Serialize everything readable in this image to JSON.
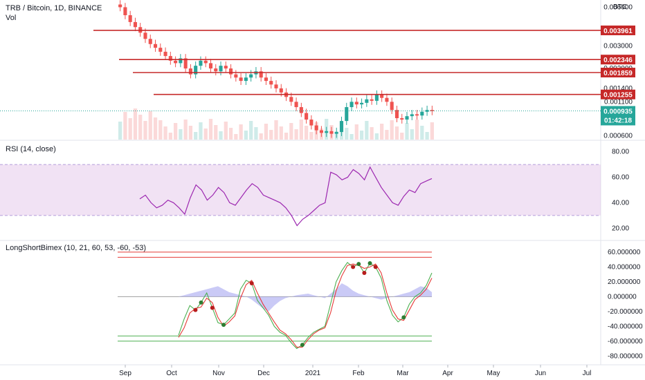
{
  "header": {
    "symbol": "TRB / Bitcoin, 1D, BINANCE",
    "volume_label": "Vol",
    "currency": "BTC"
  },
  "colors": {
    "up": "#26a69a",
    "down": "#ef5350",
    "level_line": "#c62828",
    "rsi_line": "#9c27b0",
    "rsi_band": "#e1bee7",
    "fast_line": "#4caf50",
    "slow_line": "#e53935",
    "histogram": "#b3b3f2",
    "last_price_tag": "#26a69a"
  },
  "chart_data": [
    {
      "type": "candlestick",
      "panel": "price",
      "title": "TRB / Bitcoin, 1D, BINANCE",
      "y_scale": "log",
      "y_ticks": [
        "0.006000",
        "0.003000",
        "0.002000",
        "0.001400",
        "0.001100",
        "0.000600"
      ],
      "horizontal_levels": [
        0.003961,
        0.002346,
        0.001859,
        0.001255
      ],
      "level_tags": [
        "0.003961",
        "0.002346",
        "0.001859",
        "0.001255"
      ],
      "last_price": "0.000935",
      "countdown": "01:42:18",
      "x_ticks": [
        "Sep",
        "Oct",
        "Nov",
        "Dec",
        "2021",
        "Feb",
        "Mar",
        "Apr",
        "May",
        "Jun",
        "Jul"
      ],
      "close_series": [
        0.006,
        0.0052,
        0.0046,
        0.0042,
        0.0038,
        0.0034,
        0.0031,
        0.0029,
        0.0027,
        0.0025,
        0.0023,
        0.0022,
        0.0024,
        0.002,
        0.0018,
        0.0021,
        0.0023,
        0.0022,
        0.002,
        0.0019,
        0.0021,
        0.002,
        0.0018,
        0.0017,
        0.0016,
        0.0017,
        0.0018,
        0.0019,
        0.0017,
        0.0016,
        0.0015,
        0.0014,
        0.0013,
        0.0012,
        0.0011,
        0.001,
        0.0009,
        0.0008,
        0.00072,
        0.00066,
        0.00063,
        0.00065,
        0.00062,
        0.00064,
        0.00078,
        0.001,
        0.0011,
        0.00105,
        0.00108,
        0.00115,
        0.00112,
        0.00125,
        0.00118,
        0.0011,
        0.00095,
        0.00082,
        0.0008,
        0.00085,
        0.00088,
        0.00086,
        0.00092,
        0.00095,
        0.00093
      ]
    },
    {
      "type": "line",
      "panel": "rsi",
      "title": "RSI (14, close)",
      "y_ticks": [
        "80.00",
        "60.00",
        "40.00",
        "20.00"
      ],
      "band": [
        30,
        70
      ],
      "series": [
        {
          "values": [
            43,
            46,
            40,
            36,
            38,
            42,
            40,
            36,
            31,
            44,
            54,
            50,
            42,
            46,
            52,
            48,
            40,
            38,
            44,
            50,
            55,
            52,
            46,
            44,
            42,
            40,
            36,
            30,
            22,
            27,
            30,
            34,
            38,
            40,
            64,
            62,
            58,
            60,
            66,
            63,
            58,
            68,
            60,
            52,
            46,
            40,
            38,
            45,
            50,
            48,
            55,
            57,
            59
          ]
        }
      ]
    },
    {
      "type": "line",
      "panel": "oscillator",
      "title": "LongShortBimex (10, 21, 60, 53, -60, -53)",
      "y_ticks": [
        "60.000000",
        "40.000000",
        "20.000000",
        "0.000000",
        "-20.000000",
        "-40.000000",
        "-60.000000",
        "-80.000000"
      ],
      "levels": [
        60,
        53,
        -53,
        -60
      ],
      "series": [
        {
          "values": [
            -52,
            -30,
            -12,
            -18,
            -8,
            5,
            -15,
            -35,
            -38,
            -30,
            -22,
            10,
            22,
            18,
            -5,
            -15,
            -25,
            -40,
            -48,
            -52,
            -62,
            -70,
            -65,
            -55,
            -48,
            -44,
            -40,
            -10,
            20,
            35,
            46,
            40,
            44,
            32,
            45,
            40,
            25,
            -5,
            -25,
            -34,
            -28,
            -10,
            0,
            5,
            15,
            32
          ]
        },
        {
          "values": [
            -55,
            -42,
            -22,
            -16,
            -14,
            -2,
            -8,
            -28,
            -40,
            -34,
            -26,
            -2,
            16,
            22,
            5,
            -10,
            -22,
            -34,
            -45,
            -50,
            -58,
            -68,
            -68,
            -58,
            -50,
            -45,
            -42,
            -22,
            8,
            28,
            42,
            44,
            42,
            38,
            40,
            44,
            32,
            5,
            -18,
            -30,
            -32,
            -18,
            -4,
            2,
            10,
            25
          ]
        }
      ],
      "histogram": [
        0,
        2,
        4,
        6,
        8,
        10,
        12,
        14,
        10,
        6,
        4,
        2,
        0,
        -4,
        -10,
        -16,
        -20,
        -12,
        -6,
        -2,
        0,
        2,
        3,
        4,
        2,
        0,
        -2,
        4,
        10,
        18,
        14,
        8,
        4,
        2,
        0,
        -2,
        -4,
        -2,
        0,
        2,
        4,
        6,
        10,
        14,
        12,
        6
      ]
    }
  ]
}
